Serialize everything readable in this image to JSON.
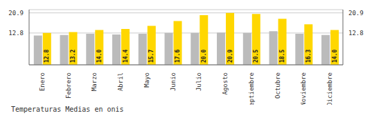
{
  "chart_data": {
    "type": "bar",
    "title": "Temperaturas Medias en onis",
    "categories": [
      "Enero",
      "Febrero",
      "Marzo",
      "Abril",
      "Mayo",
      "Junio",
      "Julio",
      "Agosto",
      "Septiembre",
      "Octubre",
      "Noviembre",
      "Diciembre"
    ],
    "series": [
      {
        "color": "#BBBBBB",
        "values": [
          11.8,
          12.0,
          12.5,
          12.2,
          12.5,
          12.8,
          12.8,
          13.0,
          12.8,
          13.5,
          12.5,
          12.0
        ]
      },
      {
        "color": "#FFD700",
        "values": [
          12.8,
          13.2,
          14.0,
          14.4,
          15.7,
          17.6,
          20.0,
          20.9,
          20.5,
          18.5,
          16.3,
          14.0
        ],
        "value_labels": [
          "12.8",
          "13.2",
          "14.0",
          "14.4",
          "15.7",
          "17.6",
          "20.0",
          "20.9",
          "20.5",
          "18.5",
          "16.3",
          "14.0"
        ],
        "data_labels": true
      }
    ],
    "ylim": [
      0,
      22.2
    ],
    "yticks": [
      12.8,
      20.9
    ],
    "y2lim": [
      0,
      22.2
    ],
    "y2ticks": [
      12.8,
      20.9
    ],
    "grid": true
  }
}
